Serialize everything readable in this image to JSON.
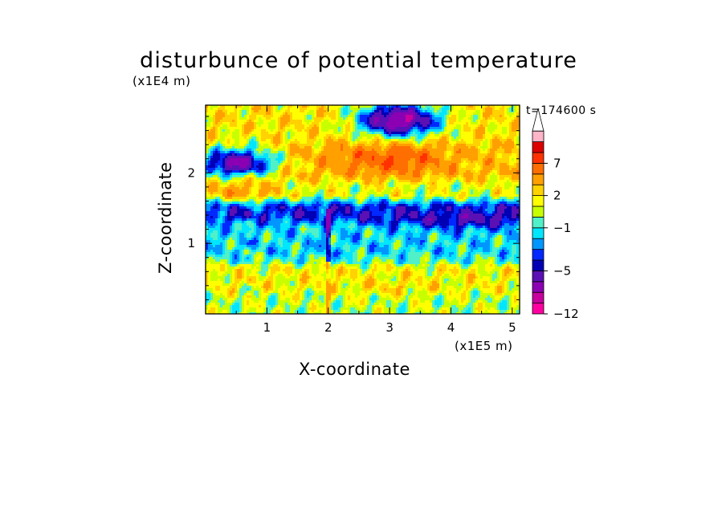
{
  "chart_data": {
    "type": "heatmap",
    "title": "disturbunce of potential temperature",
    "xlabel": "X-coordinate",
    "ylabel": "Z-coordinate",
    "x_unit": "(x1E5 m)",
    "z_unit": "(x1E4 m)",
    "time_label": "t=174600 s",
    "xlim": [
      0,
      5.12
    ],
    "ylim": [
      0,
      2.96
    ],
    "x_ticks": [
      "1",
      "2",
      "3",
      "4",
      "5"
    ],
    "y_ticks": [
      "1",
      "2"
    ],
    "colorbar": {
      "levels": [
        -12,
        -11,
        -9,
        -7,
        -5,
        -4,
        -3,
        -2,
        -1,
        0,
        1,
        2,
        3,
        5,
        7,
        9,
        11
      ],
      "labels": [
        "−12",
        "−5",
        "−1",
        "2",
        "7"
      ],
      "label_values": [
        -12,
        -5,
        -1,
        2,
        7
      ],
      "colors": [
        "#ff00a0",
        "#c8009e",
        "#8c00b4",
        "#5a10b4",
        "#0000b4",
        "#0028ff",
        "#0096ff",
        "#00e6ff",
        "#50f0c8",
        "#c8ff00",
        "#ffff00",
        "#ffd200",
        "#ffa000",
        "#ff6e00",
        "#ff3200",
        "#dc0000",
        "#ffb4c8"
      ],
      "extend": "max"
    },
    "layers": [
      {
        "z_range": [
          0,
          0.3
        ],
        "value": 0.5
      },
      {
        "z_range": [
          0.3,
          0.7
        ],
        "value": 1.5
      },
      {
        "z_range": [
          0.7,
          0.8
        ],
        "value": -0.3
      },
      {
        "z_range": [
          0.8,
          1.3
        ],
        "value": -1.5
      },
      {
        "z_range": [
          1.3,
          1.6
        ],
        "value": -4
      },
      {
        "z_range": [
          1.6,
          1.9
        ],
        "value": 1
      },
      {
        "z_range": [
          1.9,
          2.4
        ],
        "value": 3
      },
      {
        "z_range": [
          2.4,
          2.96
        ],
        "value": 2
      }
    ],
    "features": [
      {
        "type": "low",
        "x": 3.15,
        "z": 2.75,
        "value": -9
      },
      {
        "type": "low",
        "x": 0.5,
        "z": 2.12,
        "value": -8
      },
      {
        "type": "high",
        "x": 3.3,
        "z": 2.2,
        "value": 6
      },
      {
        "type": "high",
        "x": 2.55,
        "z": 2.2,
        "value": 5
      },
      {
        "type": "high",
        "x": 0.55,
        "z": 1.82,
        "value": 5
      },
      {
        "type": "low",
        "x": 4.3,
        "z": 1.3,
        "value": -5
      },
      {
        "type": "high",
        "x": 3.0,
        "z": 0.35,
        "value": 2
      }
    ]
  }
}
